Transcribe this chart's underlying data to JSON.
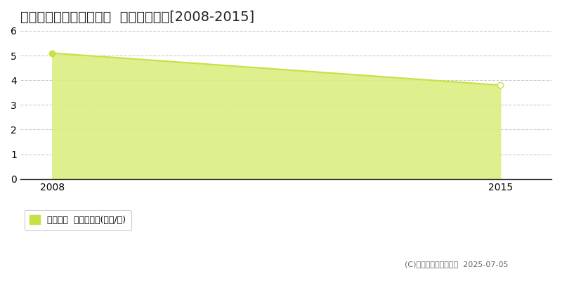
{
  "title": "会津若松市高野町上高野  土地価格推移[2008-2015]",
  "x_values": [
    2008,
    2015
  ],
  "y_values": [
    5.1,
    3.8
  ],
  "xlim": [
    2007.5,
    2015.8
  ],
  "ylim": [
    0,
    6
  ],
  "yticks": [
    0,
    1,
    2,
    3,
    4,
    5,
    6
  ],
  "xticks": [
    2008,
    2015
  ],
  "line_color": "#c8e044",
  "fill_color": "#d9ed7a",
  "fill_alpha": 0.85,
  "marker_color": "#c8e044",
  "grid_color": "#cccccc",
  "background_color": "#ffffff",
  "title_fontsize": 14,
  "legend_label": "土地価格  平均坪単価(万円/坪)",
  "copyright_text": "(C)土地価格ドットコム  2025-07-05",
  "legend_square_color": "#c8e044"
}
